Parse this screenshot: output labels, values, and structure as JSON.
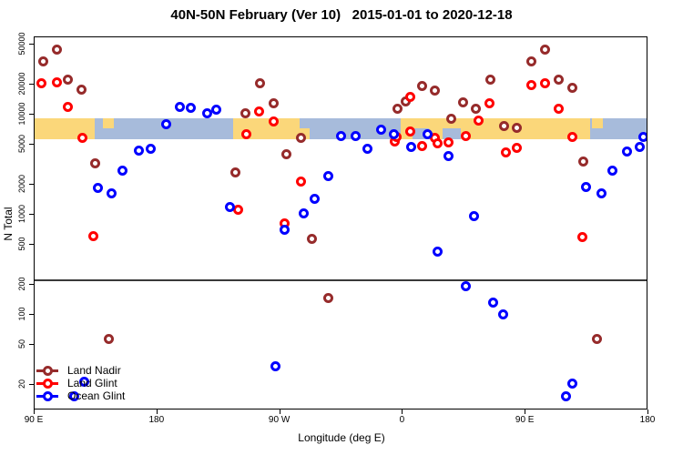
{
  "chart_data": {
    "type": "scatter",
    "title": "40N-50N February (Ver 10)   2015-01-01 to 2020-12-18",
    "xlabel": "Longitude (deg E)",
    "ylabel": "N Total",
    "x_axis": {
      "span_deg": 450,
      "wraparound_note": "axis runs 90E -> 180 -> 90W -> 0 -> 90E -> 180; 90E-180 range shown at both ends",
      "ticks_deg": [
        0,
        90,
        180,
        270,
        360,
        450
      ],
      "tick_labels": [
        "90 E",
        "180",
        "90 W",
        "0",
        "90 E",
        "180"
      ]
    },
    "y_axis": {
      "scale": "log",
      "ticks": [
        20,
        50,
        100,
        200,
        500,
        1000,
        2000,
        5000,
        10000,
        20000,
        50000
      ],
      "range": [
        10.5,
        59000
      ],
      "grid": false
    },
    "reference_line_n": 220,
    "map_band": {
      "description": "40N-50N latitude strip map: land vs ocean along longitude",
      "n_top": 9000,
      "n_bottom": 5600,
      "land_color": "#FBD77A",
      "ocean_color": "#A7BBDB",
      "segments": [
        {
          "from": 0,
          "to": 45,
          "surface": "land"
        },
        {
          "from": 45,
          "to": 146,
          "surface": "ocean"
        },
        {
          "from": 146,
          "to": 202,
          "surface": "land"
        },
        {
          "from": 202,
          "to": 269,
          "surface": "ocean"
        },
        {
          "from": 269,
          "to": 408,
          "surface": "land"
        },
        {
          "from": 408,
          "to": 450,
          "surface": "ocean"
        }
      ],
      "patches": [
        {
          "from": 51,
          "to": 59,
          "surface": "land",
          "part": "top"
        },
        {
          "from": 195,
          "to": 204,
          "surface": "ocean",
          "part": "top"
        },
        {
          "from": 278,
          "to": 290,
          "surface": "ocean",
          "part": "bottom"
        },
        {
          "from": 300,
          "to": 313,
          "surface": "ocean",
          "part": "bottom"
        },
        {
          "from": 409,
          "to": 417,
          "surface": "land",
          "part": "top"
        }
      ]
    },
    "legend": {
      "position": "bottom-left"
    },
    "series": [
      {
        "name": "Land Nadir",
        "color": "#962B2B",
        "points": [
          [
            7,
            33000
          ],
          [
            17,
            44000
          ],
          [
            25,
            22000
          ],
          [
            35,
            17500
          ],
          [
            45,
            3200
          ],
          [
            55,
            56
          ],
          [
            148,
            2600
          ],
          [
            155,
            10200
          ],
          [
            166,
            20000
          ],
          [
            176,
            12600
          ],
          [
            185,
            3900
          ],
          [
            196,
            5700
          ],
          [
            204,
            560
          ],
          [
            216,
            145
          ],
          [
            267,
            11300
          ],
          [
            273,
            13400
          ],
          [
            285,
            19000
          ],
          [
            294,
            17000
          ],
          [
            306,
            9000
          ],
          [
            315,
            13100
          ],
          [
            324,
            11300
          ],
          [
            335,
            21700
          ],
          [
            345,
            7600
          ],
          [
            354,
            7300
          ],
          [
            365,
            33000
          ],
          [
            375,
            44000
          ],
          [
            385,
            21700
          ],
          [
            395,
            18000
          ],
          [
            403,
            3300
          ],
          [
            413,
            56
          ]
        ]
      },
      {
        "name": "Land Glint",
        "color": "#FF0000",
        "points": [
          [
            6,
            20000
          ],
          [
            17,
            20400
          ],
          [
            25,
            11800
          ],
          [
            36,
            5700
          ],
          [
            44,
            600
          ],
          [
            150,
            1090
          ],
          [
            156,
            6300
          ],
          [
            165,
            10600
          ],
          [
            176,
            8400
          ],
          [
            184,
            800
          ],
          [
            196,
            2100
          ],
          [
            265,
            5300
          ],
          [
            266,
            5900
          ],
          [
            276,
            14600
          ],
          [
            276,
            6700
          ],
          [
            285,
            4800
          ],
          [
            294,
            5700
          ],
          [
            296,
            5100
          ],
          [
            304,
            5200
          ],
          [
            317,
            6000
          ],
          [
            326,
            8600
          ],
          [
            334,
            12800
          ],
          [
            346,
            4100
          ],
          [
            354,
            4600
          ],
          [
            365,
            19500
          ],
          [
            375,
            20000
          ],
          [
            385,
            11300
          ],
          [
            395,
            5900
          ],
          [
            402,
            590
          ]
        ]
      },
      {
        "name": "Ocean Glint",
        "color": "#0000FF",
        "points": [
          [
            30,
            15
          ],
          [
            37,
            21
          ],
          [
            47,
            1800
          ],
          [
            57,
            1600
          ],
          [
            65,
            2700
          ],
          [
            77,
            4300
          ],
          [
            86,
            4500
          ],
          [
            97,
            7800
          ],
          [
            107,
            11600
          ],
          [
            115,
            11400
          ],
          [
            127,
            10200
          ],
          [
            134,
            10900
          ],
          [
            144,
            1180
          ],
          [
            177,
            30
          ],
          [
            184,
            690
          ],
          [
            198,
            1020
          ],
          [
            206,
            1400
          ],
          [
            216,
            2400
          ],
          [
            225,
            6000
          ],
          [
            236,
            6000
          ],
          [
            245,
            4500
          ],
          [
            255,
            7000
          ],
          [
            264,
            6200
          ],
          [
            277,
            4700
          ],
          [
            289,
            6200
          ],
          [
            296,
            420
          ],
          [
            304,
            3800
          ],
          [
            317,
            190
          ],
          [
            323,
            940
          ],
          [
            337,
            130
          ],
          [
            344,
            100
          ],
          [
            390,
            15
          ],
          [
            395,
            20
          ],
          [
            405,
            1840
          ],
          [
            416,
            1600
          ],
          [
            424,
            2700
          ],
          [
            435,
            4200
          ],
          [
            444,
            4700
          ],
          [
            447,
            5900
          ]
        ]
      }
    ]
  }
}
